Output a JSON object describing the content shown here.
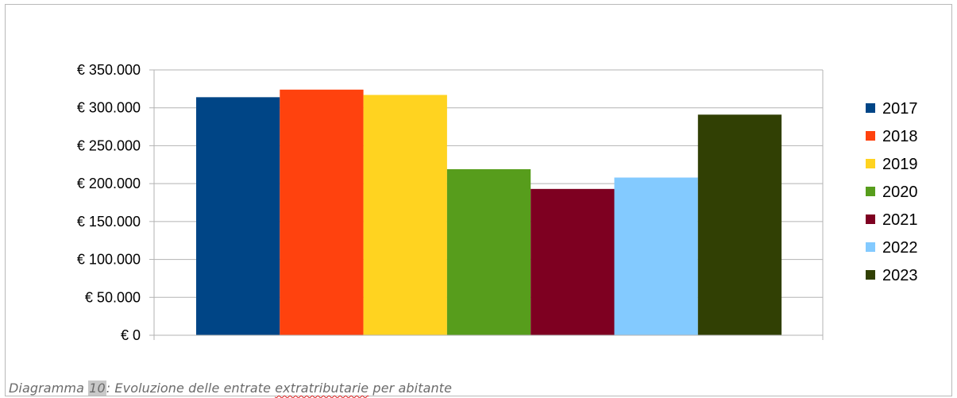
{
  "chart_data": {
    "type": "bar",
    "title": "",
    "xlabel": "",
    "ylabel": "",
    "ylim": [
      0,
      350000
    ],
    "yticks": [
      {
        "value": 0,
        "label": "€ 0"
      },
      {
        "value": 50000,
        "label": "€ 50.000"
      },
      {
        "value": 100000,
        "label": "€ 100.000"
      },
      {
        "value": 150000,
        "label": "€ 150.000"
      },
      {
        "value": 200000,
        "label": "€ 200.000"
      },
      {
        "value": 250000,
        "label": "€ 250.000"
      },
      {
        "value": 300000,
        "label": "€ 300.000"
      },
      {
        "value": 350000,
        "label": "€ 350.000"
      }
    ],
    "grid": true,
    "legend_position": "right",
    "series": [
      {
        "name": "2017",
        "value": 314000,
        "color": "#004586"
      },
      {
        "name": "2018",
        "value": 324000,
        "color": "#ff420e"
      },
      {
        "name": "2019",
        "value": 317000,
        "color": "#ffd320"
      },
      {
        "name": "2020",
        "value": 219000,
        "color": "#579d1c"
      },
      {
        "name": "2021",
        "value": 193000,
        "color": "#7e0021"
      },
      {
        "name": "2022",
        "value": 208000,
        "color": "#83caff"
      },
      {
        "name": "2023",
        "value": 291000,
        "color": "#314004"
      }
    ]
  },
  "caption": {
    "prefix": "Diagramma ",
    "number": "10",
    "middle": ": Evoluzione delle entrate ",
    "flagged_word": "extratributarie",
    "suffix": " per abitante"
  }
}
